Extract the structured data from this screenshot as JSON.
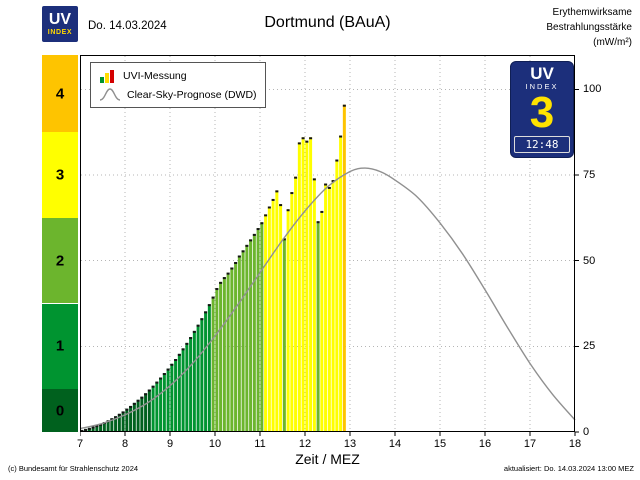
{
  "header": {
    "logo": {
      "uv": "UV",
      "index": "INDEX"
    },
    "date": "Do. 14.03.2024",
    "title": "Dortmund (BAuA)",
    "unit_label_lines": [
      "Erythemwirksame",
      "Bestrahlungsstärke",
      "(mW/m²)"
    ]
  },
  "legend": {
    "measurement": "UVI-Messung",
    "forecast": "Clear-Sky-Prognose (DWD)"
  },
  "badge": {
    "uv": "UV",
    "index": "INDEX",
    "value": "3",
    "time": "12:48"
  },
  "axis": {
    "xlabel": "Zeit / MEZ"
  },
  "footer": {
    "copyright": "(c) Bundesamt für Strahlenschutz 2024",
    "updated": "aktualisiert: Do. 14.03.2024 13:00  MEZ"
  },
  "uvi_scale": {
    "blocks": [
      {
        "label": "0",
        "from": 0,
        "to": 12.5,
        "color": "#00611e"
      },
      {
        "label": "1",
        "from": 12.5,
        "to": 37.5,
        "color": "#009430"
      },
      {
        "label": "2",
        "from": 37.5,
        "to": 62.5,
        "color": "#6cb52d"
      },
      {
        "label": "3",
        "from": 62.5,
        "to": 87.5,
        "color": "#ffff00"
      },
      {
        "label": "4",
        "from": 87.5,
        "to": 110,
        "color": "#fec400"
      }
    ]
  },
  "chart_data": {
    "type": "bar",
    "title": "Dortmund (BAuA)",
    "xlabel": "Zeit / MEZ",
    "ylabel": "Erythemwirksame Bestrahlungsstärke (mW/m²)",
    "legend": [
      "UVI-Messung",
      "Clear-Sky-Prognose (DWD)"
    ],
    "legend_position": "top-left",
    "grid": "dotted",
    "x_range": [
      7,
      18
    ],
    "y_max": 110,
    "x_ticks": [
      7,
      8,
      9,
      10,
      11,
      12,
      13,
      14,
      15,
      16,
      17,
      18
    ],
    "y_ticks": [
      0,
      25,
      50,
      75,
      100
    ],
    "bar_interval_minutes": 5,
    "uvi_colors": {
      "0": "#00611e",
      "1": "#009430",
      "2": "#6cb52d",
      "3": "#ffff00",
      "4": "#fec400"
    },
    "curve_color": "#909090",
    "bars": [
      [
        "07:00",
        0.6
      ],
      [
        "07:05",
        0.9
      ],
      [
        "07:10",
        1.2
      ],
      [
        "07:15",
        1.6
      ],
      [
        "07:20",
        2.0
      ],
      [
        "07:25",
        2.4
      ],
      [
        "07:30",
        2.9
      ],
      [
        "07:35",
        3.4
      ],
      [
        "07:40",
        4.0
      ],
      [
        "07:45",
        4.6
      ],
      [
        "07:50",
        5.3
      ],
      [
        "07:55",
        6.0
      ],
      [
        "08:00",
        6.8
      ],
      [
        "08:05",
        7.6
      ],
      [
        "08:10",
        8.5
      ],
      [
        "08:15",
        9.4
      ],
      [
        "08:20",
        10.3
      ],
      [
        "08:25",
        11.3
      ],
      [
        "08:30",
        12.4
      ],
      [
        "08:35",
        13.5
      ],
      [
        "08:40",
        14.7
      ],
      [
        "08:45",
        15.9
      ],
      [
        "08:50",
        17.2
      ],
      [
        "08:55",
        18.5
      ],
      [
        "09:00",
        19.9
      ],
      [
        "09:05",
        21.3
      ],
      [
        "09:10",
        22.8
      ],
      [
        "09:15",
        24.4
      ],
      [
        "09:20",
        26.0
      ],
      [
        "09:25",
        27.7
      ],
      [
        "09:30",
        29.5
      ],
      [
        "09:35",
        31.3
      ],
      [
        "09:40",
        33.2
      ],
      [
        "09:45",
        35.2
      ],
      [
        "09:50",
        37.3
      ],
      [
        "09:55",
        39.5
      ],
      [
        "10:00",
        42.0
      ],
      [
        "10:05",
        43.8
      ],
      [
        "10:10",
        45.2
      ],
      [
        "10:15",
        46.5
      ],
      [
        "10:20",
        48.0
      ],
      [
        "10:25",
        49.6
      ],
      [
        "10:30",
        51.5
      ],
      [
        "10:35",
        53.0
      ],
      [
        "10:40",
        54.6
      ],
      [
        "10:45",
        56.2
      ],
      [
        "10:50",
        57.8
      ],
      [
        "10:55",
        59.5
      ],
      [
        "11:00",
        61.2
      ],
      [
        "11:05",
        63.5
      ],
      [
        "11:10",
        65.8
      ],
      [
        "11:15",
        68.0
      ],
      [
        "11:20",
        70.5
      ],
      [
        "11:25",
        66.5
      ],
      [
        "11:30",
        56.5
      ],
      [
        "11:35",
        65.0
      ],
      [
        "11:40",
        70.0
      ],
      [
        "11:45",
        74.5
      ],
      [
        "11:50",
        84.5
      ],
      [
        "11:55",
        86.0
      ],
      [
        "12:00",
        85.0
      ],
      [
        "12:05",
        86.0
      ],
      [
        "12:10",
        74.0
      ],
      [
        "12:15",
        61.5
      ],
      [
        "12:20",
        64.5
      ],
      [
        "12:25",
        72.5
      ],
      [
        "12:30",
        71.5
      ],
      [
        "12:35",
        73.5
      ],
      [
        "12:40",
        79.5
      ],
      [
        "12:45",
        86.5
      ],
      [
        "12:50",
        95.5
      ]
    ],
    "clear_sky": [
      [
        "07:00",
        1.0
      ],
      [
        "07:30",
        2.5
      ],
      [
        "08:00",
        5.0
      ],
      [
        "08:30",
        8.5
      ],
      [
        "09:00",
        13.5
      ],
      [
        "09:30",
        20.0
      ],
      [
        "10:00",
        28.0
      ],
      [
        "10:30",
        37.0
      ],
      [
        "11:00",
        46.5
      ],
      [
        "11:30",
        56.0
      ],
      [
        "12:00",
        64.5
      ],
      [
        "12:30",
        71.5
      ],
      [
        "13:00",
        76.0
      ],
      [
        "13:20",
        77.0
      ],
      [
        "13:40",
        76.0
      ],
      [
        "14:00",
        73.5
      ],
      [
        "14:30",
        68.5
      ],
      [
        "15:00",
        61.0
      ],
      [
        "15:30",
        52.0
      ],
      [
        "16:00",
        41.5
      ],
      [
        "16:30",
        30.5
      ],
      [
        "17:00",
        20.0
      ],
      [
        "17:30",
        11.0
      ],
      [
        "18:00",
        3.5
      ]
    ]
  }
}
